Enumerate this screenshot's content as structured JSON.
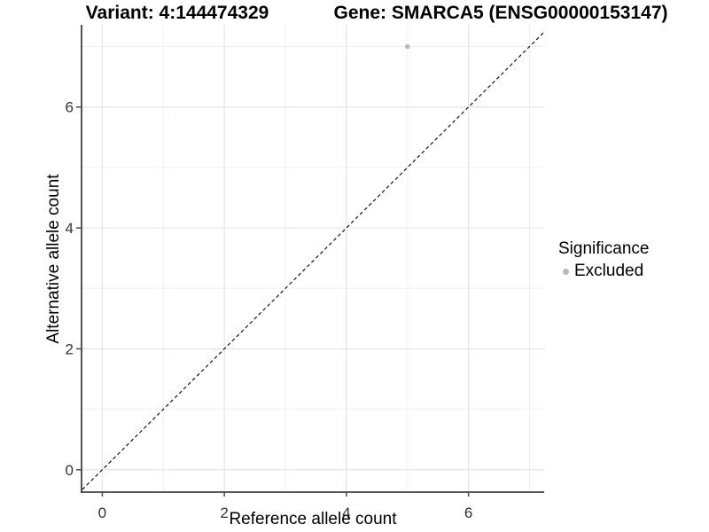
{
  "chart_data": {
    "type": "scatter",
    "title_left": "Variant: 4:144474329",
    "title_right": "Gene: SMARCA5 (ENSG00000153147)",
    "xlabel": "Reference allele count",
    "ylabel": "Alternative allele count",
    "xlim": [
      -0.34,
      7.24
    ],
    "ylim": [
      -0.37,
      7.36
    ],
    "x_ticks": [
      0,
      2,
      4,
      6
    ],
    "y_ticks": [
      0,
      2,
      4,
      6
    ],
    "x_minor_ticks": [
      1,
      3,
      5,
      7
    ],
    "y_minor_ticks": [
      1,
      3,
      5,
      7
    ],
    "grid": "major+minor",
    "series": [
      {
        "name": "Excluded",
        "points": [
          {
            "x": 5,
            "y": 7
          }
        ]
      }
    ],
    "reference_line": {
      "slope": 1,
      "intercept": 0,
      "style": "dashed",
      "color": "#000000"
    },
    "legend": {
      "title": "Significance",
      "position": "right",
      "entries": [
        {
          "label": "Excluded",
          "color": "#b8b8b8",
          "marker": "circle"
        }
      ]
    },
    "colors": {
      "point": "#b8b8b8",
      "grid_major": "#e3e3e3",
      "grid_minor": "#f0f0f0",
      "axis_line": "#404040",
      "tick_label": "#333333",
      "title": "#000000",
      "background": "#ffffff"
    }
  }
}
